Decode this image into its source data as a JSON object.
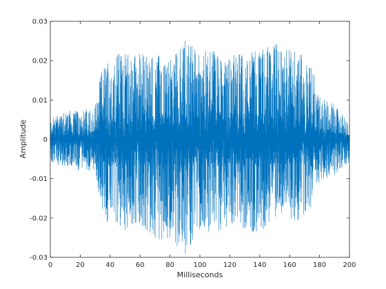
{
  "chart_data": {
    "type": "line",
    "title": "",
    "xlabel": "Milliseconds",
    "ylabel": "Amplitude",
    "xlim": [
      0,
      200
    ],
    "ylim": [
      -0.03,
      0.03
    ],
    "x_ticks": [
      0,
      20,
      40,
      60,
      80,
      100,
      120,
      140,
      160,
      180,
      200
    ],
    "x_tick_labels": [
      "0",
      "20",
      "40",
      "60",
      "80",
      "100",
      "120",
      "140",
      "160",
      "180",
      "200"
    ],
    "y_ticks": [
      -0.03,
      -0.02,
      -0.01,
      0,
      0.01,
      0.02,
      0.03
    ],
    "y_tick_labels": [
      "-0.03",
      "-0.02",
      "-0.01",
      "0",
      "0.01",
      "0.02",
      "0.03"
    ],
    "grid": false,
    "line_color": "#0072bd",
    "series": [
      {
        "x": [
          0,
          10,
          20,
          30,
          34,
          40,
          50,
          60,
          70,
          80,
          90,
          100,
          110,
          120,
          130,
          140,
          150,
          160,
          170,
          175,
          180,
          190,
          200
        ],
        "y_max": [
          0.005,
          0.008,
          0.007,
          0.009,
          0.017,
          0.022,
          0.022,
          0.022,
          0.022,
          0.02,
          0.026,
          0.022,
          0.024,
          0.022,
          0.022,
          0.023,
          0.025,
          0.023,
          0.022,
          0.019,
          0.011,
          0.009,
          0.004
        ],
        "y_min": [
          -0.006,
          -0.007,
          -0.008,
          -0.008,
          -0.018,
          -0.023,
          -0.023,
          -0.022,
          -0.026,
          -0.025,
          -0.03,
          -0.023,
          -0.024,
          -0.022,
          -0.023,
          -0.024,
          -0.02,
          -0.022,
          -0.02,
          -0.017,
          -0.011,
          -0.009,
          -0.006
        ]
      }
    ]
  }
}
